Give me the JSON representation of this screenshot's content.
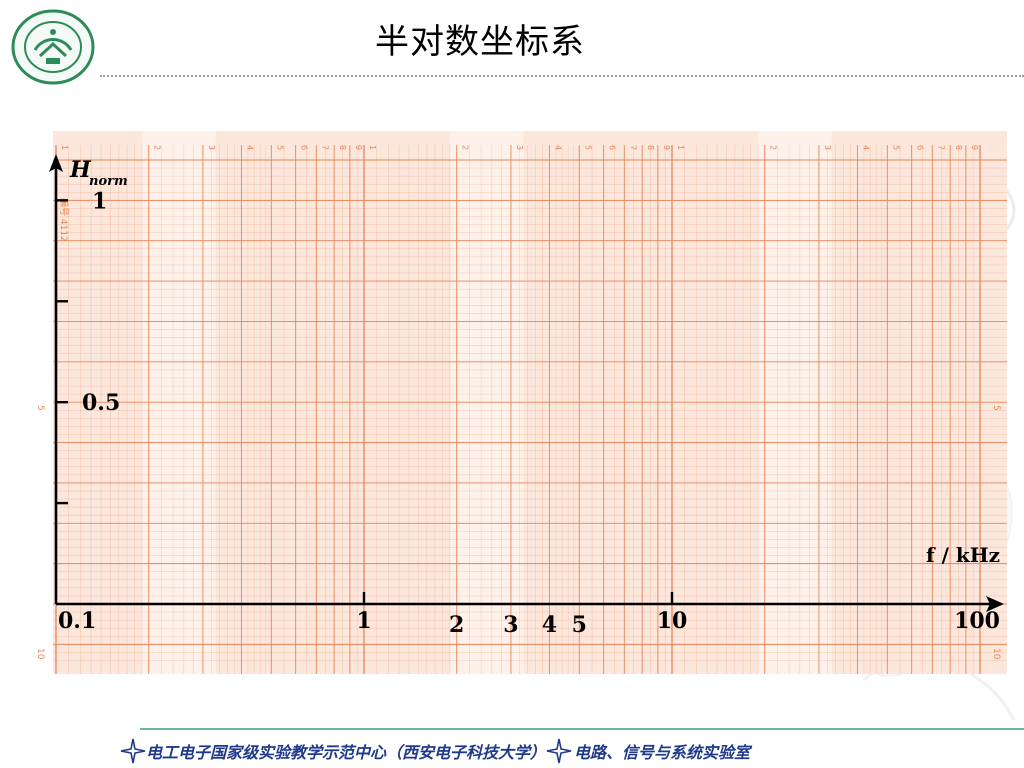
{
  "title": "半对数坐标系",
  "footer": {
    "left": "电工电子国家级实验教学示范中心（西安电子科技大学）",
    "right": "电路、信号与系统实验室"
  },
  "colors": {
    "grid": "#e8865a",
    "paper": "#fbe7dc",
    "axis": "#000000",
    "footer_text": "#1f3a8a",
    "logo": "#2e8b57"
  },
  "icons": [
    "university-logo-icon",
    "star-divider-icon"
  ],
  "chart_data": {
    "type": "line",
    "scale": {
      "x": "log",
      "y": "linear"
    },
    "xlim": [
      0.1,
      100
    ],
    "ylim": [
      0,
      1.1
    ],
    "ylabel": "H",
    "ylabel_sub": "norm",
    "xlabel": "f / kHz",
    "x_ticks": [
      {
        "value": 0.1,
        "label": "0.1"
      },
      {
        "value": 1,
        "label": "1"
      },
      {
        "value": 2,
        "label": "2"
      },
      {
        "value": 3,
        "label": "3"
      },
      {
        "value": 4,
        "label": "4"
      },
      {
        "value": 5,
        "label": "5"
      },
      {
        "value": 10,
        "label": "10"
      },
      {
        "value": 100,
        "label": "100"
      }
    ],
    "y_ticks": [
      {
        "value": 1,
        "label": "1"
      },
      {
        "value": 0.75,
        "label": ""
      },
      {
        "value": 0.5,
        "label": "0.5"
      },
      {
        "value": 0.25,
        "label": ""
      }
    ],
    "paper_labels": {
      "top_decade": [
        "1",
        "2",
        "3",
        "4",
        "5",
        "6",
        "7",
        "8",
        "9"
      ],
      "left_margin": [
        "5",
        "10"
      ],
      "right_margin": [
        "5",
        "10"
      ],
      "sheet_code": "编号 4112"
    },
    "grid": true,
    "series": []
  }
}
